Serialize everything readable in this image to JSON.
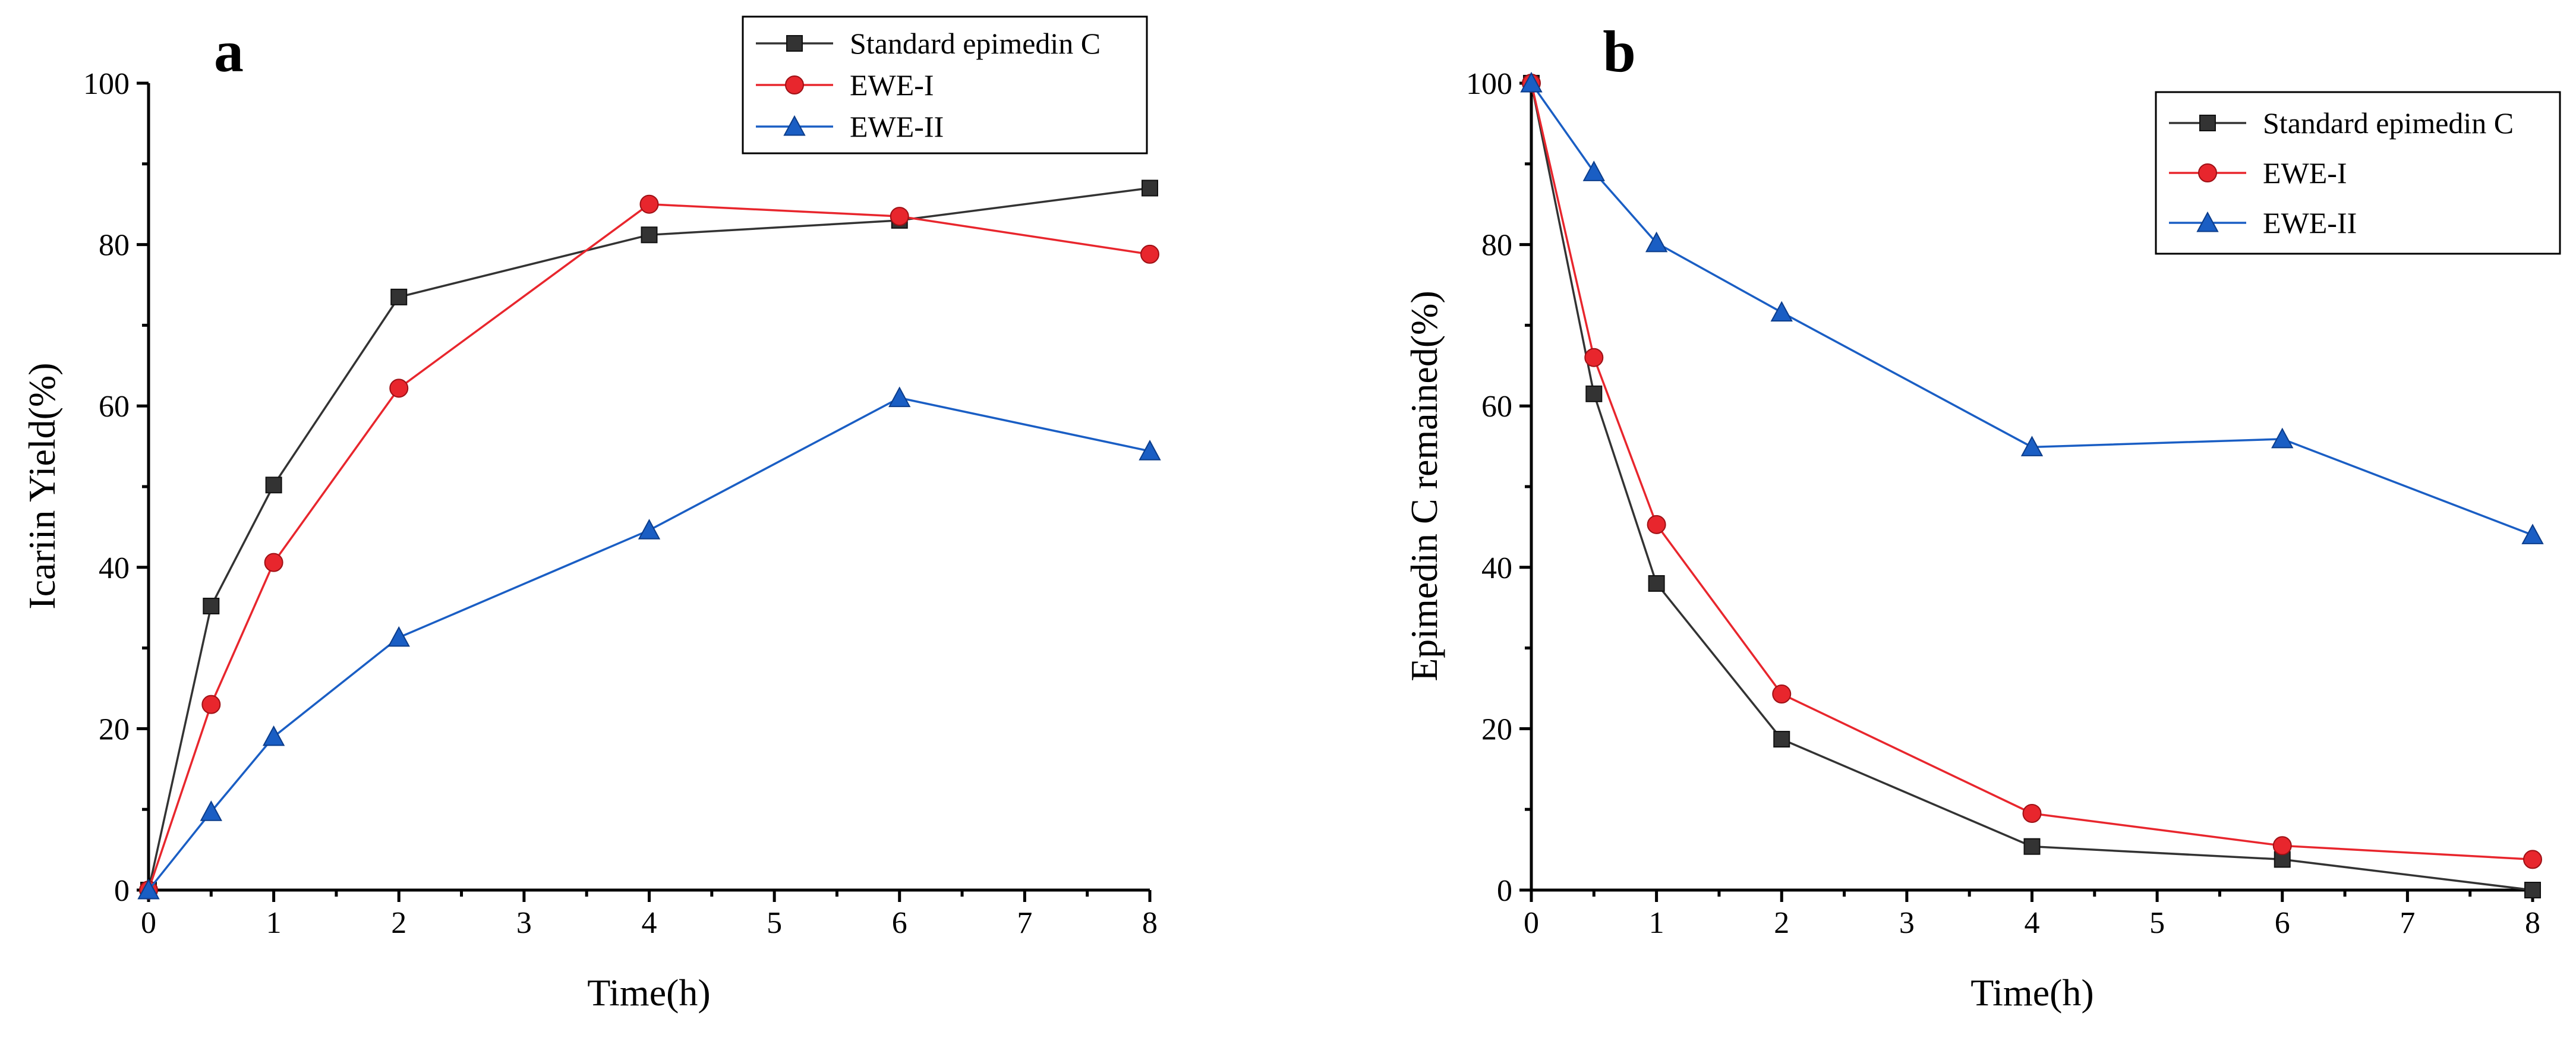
{
  "chart_data": [
    {
      "type": "line",
      "panel_label": "a",
      "xlabel": "Time(h)",
      "ylabel": "Icariin Yield(%)",
      "xlim": [
        0,
        8
      ],
      "ylim": [
        0,
        100
      ],
      "xticks": [
        0,
        1,
        2,
        3,
        4,
        5,
        6,
        7,
        8
      ],
      "yticks": [
        0,
        20,
        40,
        60,
        80,
        100
      ],
      "legend_position": "top-right",
      "series": [
        {
          "name": "Standard epimedin C",
          "marker": "square",
          "color": "#333333",
          "x": [
            0,
            0.5,
            1,
            2,
            4,
            6,
            8
          ],
          "y": [
            0,
            35.2,
            50.2,
            73.5,
            81.2,
            83.0,
            87.0
          ]
        },
        {
          "name": "EWE-I",
          "marker": "circle",
          "color": "#e8262d",
          "x": [
            0,
            0.5,
            1,
            2,
            4,
            6,
            8
          ],
          "y": [
            0,
            23.0,
            40.6,
            62.2,
            85.0,
            83.5,
            78.8
          ]
        },
        {
          "name": "EWE-II",
          "marker": "triangle",
          "color": "#1a5ec4",
          "x": [
            0,
            0.5,
            1,
            2,
            4,
            6,
            8
          ],
          "y": [
            0,
            9.7,
            19.0,
            31.3,
            44.6,
            61.0,
            54.4
          ]
        }
      ]
    },
    {
      "type": "line",
      "panel_label": "b",
      "xlabel": "Time(h)",
      "ylabel": "Epimedin C remained(%)",
      "xlim": [
        0,
        8
      ],
      "ylim": [
        0,
        100
      ],
      "xticks": [
        0,
        1,
        2,
        3,
        4,
        5,
        6,
        7,
        8
      ],
      "yticks": [
        0,
        20,
        40,
        60,
        80,
        100
      ],
      "legend_position": "top-right",
      "series": [
        {
          "name": "Standard epimedin C",
          "marker": "square",
          "color": "#333333",
          "x": [
            0,
            0.5,
            1,
            2,
            4,
            6,
            8
          ],
          "y": [
            100,
            61.5,
            38.0,
            18.7,
            5.4,
            3.8,
            0
          ]
        },
        {
          "name": "EWE-I",
          "marker": "circle",
          "color": "#e8262d",
          "x": [
            0,
            0.5,
            1,
            2,
            4,
            6,
            8
          ],
          "y": [
            100,
            66.0,
            45.3,
            24.3,
            9.5,
            5.5,
            3.8
          ]
        },
        {
          "name": "EWE-II",
          "marker": "triangle",
          "color": "#1a5ec4",
          "x": [
            0,
            0.5,
            1,
            2,
            4,
            6,
            8
          ],
          "y": [
            100,
            89.0,
            80.2,
            71.6,
            54.9,
            55.9,
            44.0
          ]
        }
      ]
    }
  ]
}
